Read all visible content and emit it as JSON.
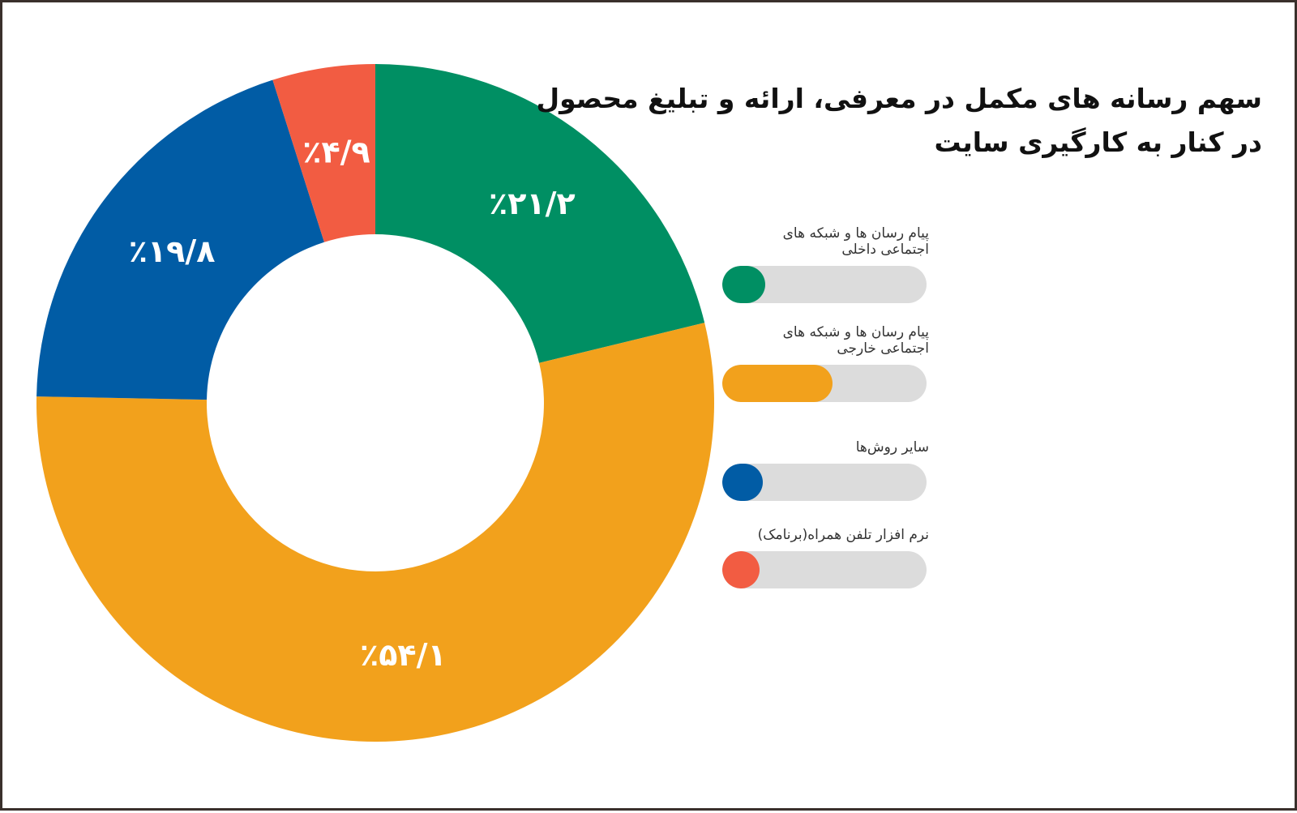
{
  "chart_data": {
    "type": "pie",
    "donut": true,
    "title": "سهم رسانه های مکمل در معرفی، ارائه و تبلیغ محصول در کنار به کارگیری سایت",
    "title_lines": [
      "سهم رسانه های مکمل در معرفی، ارائه و تبلیغ محصول",
      "در کنار به کارگیری سایت"
    ],
    "legend_position": "right",
    "slices": [
      {
        "name": "پیام رسان ها و شبکه های اجتماعی داخلی",
        "value": 21.2,
        "label": "٪۲۱/۲",
        "color": "#008f63"
      },
      {
        "name": "پیام رسان ها و شبکه های اجتماعی خارجی",
        "value": 54.1,
        "label": "٪۵۴/۱",
        "color": "#f2a11c"
      },
      {
        "name": "سایر روش‌ها",
        "value": 19.8,
        "label": "٪۱۹/۸",
        "color": "#015ca5"
      },
      {
        "name": "نرم افزار تلفن همراه(برنامک)",
        "value": 4.9,
        "label": "٪۴/۹",
        "color": "#f25c42"
      }
    ]
  },
  "colors": {
    "track": "#dcdcdc",
    "frame_border": "#3a302c"
  }
}
